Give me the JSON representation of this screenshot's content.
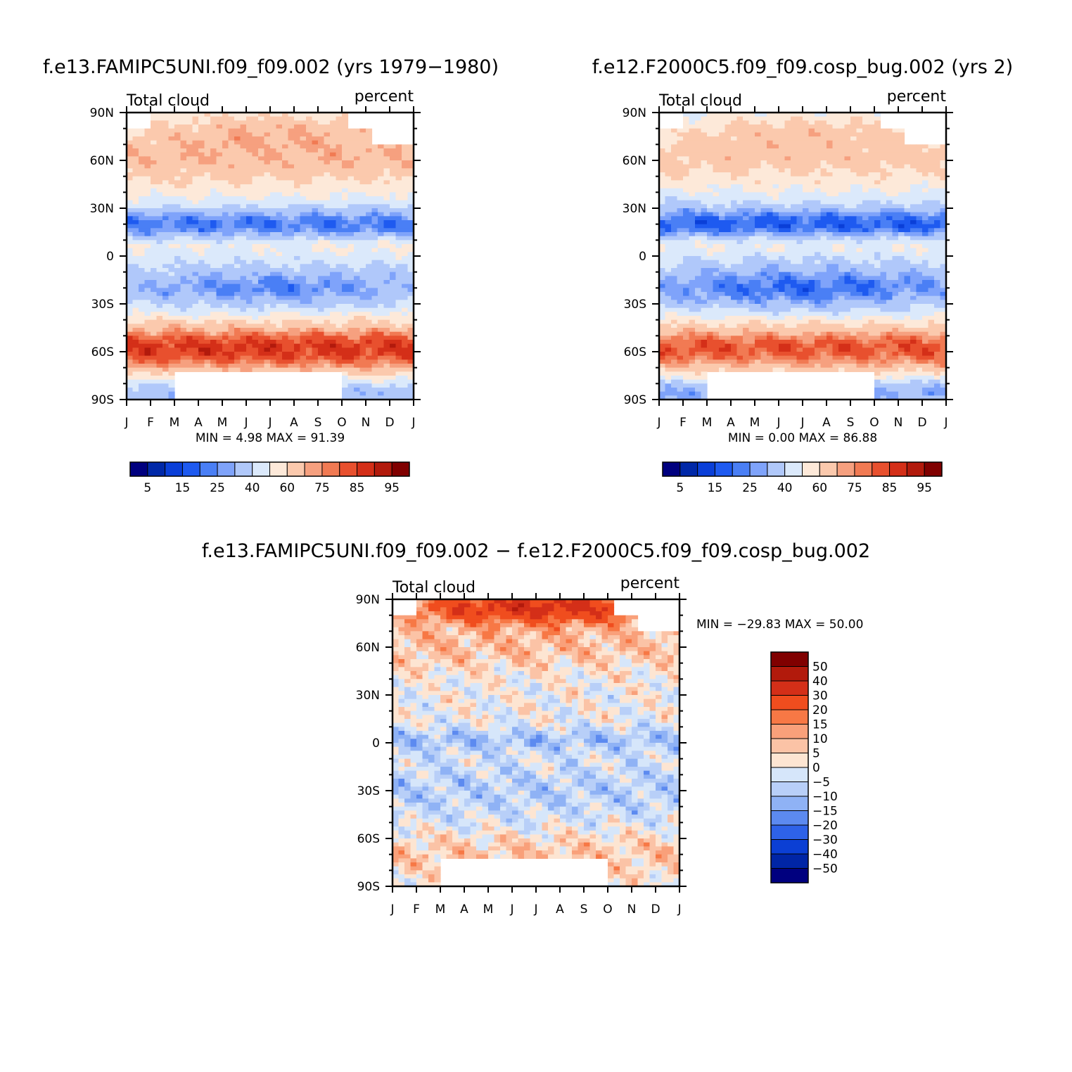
{
  "chart_data": [
    {
      "type": "heatmap",
      "id": "p1",
      "title": "f.e13.FAMIPC5UNI.f09_f09.002 (yrs 1979-1980)",
      "left_label": "Total cloud",
      "right_label": "percent",
      "x_ticks": [
        "J",
        "F",
        "M",
        "A",
        "M",
        "J",
        "J",
        "A",
        "S",
        "O",
        "N",
        "D",
        "J"
      ],
      "y_ticks": [
        "90N",
        "60N",
        "30N",
        "0",
        "30S",
        "60S",
        "90S"
      ],
      "stats_text": "MIN =    4.98  MAX =   91.39",
      "colorbar": {
        "orientation": "horizontal",
        "colors": [
          "#00007f",
          "#0028a8",
          "#0a3fd8",
          "#1e5af0",
          "#4a7ff5",
          "#7fa3fa",
          "#b0c8fa",
          "#dbe9fb",
          "#fde9d9",
          "#fbc9ad",
          "#f6a07f",
          "#f17a53",
          "#e8502e",
          "#d42f18",
          "#b21a0c",
          "#800000"
        ],
        "labels": [
          "5",
          "15",
          "25",
          "40",
          "60",
          "75",
          "85",
          "95"
        ]
      },
      "field": "climatological total cloud fraction by latitude and month"
    },
    {
      "type": "heatmap",
      "id": "p2",
      "title": "f.e12.F2000C5.f09_f09.cosp_bug.002 (yrs 2)",
      "left_label": "Total cloud",
      "right_label": "percent",
      "x_ticks": [
        "J",
        "F",
        "M",
        "A",
        "M",
        "J",
        "J",
        "A",
        "S",
        "O",
        "N",
        "D",
        "J"
      ],
      "y_ticks": [
        "90N",
        "60N",
        "30N",
        "0",
        "30S",
        "60S",
        "90S"
      ],
      "stats_text": "MIN =    0.00  MAX =   86.88",
      "colorbar": {
        "orientation": "horizontal",
        "colors": [
          "#00007f",
          "#0028a8",
          "#0a3fd8",
          "#1e5af0",
          "#4a7ff5",
          "#7fa3fa",
          "#b0c8fa",
          "#dbe9fb",
          "#fde9d9",
          "#fbc9ad",
          "#f6a07f",
          "#f17a53",
          "#e8502e",
          "#d42f18",
          "#b21a0c",
          "#800000"
        ],
        "labels": [
          "5",
          "15",
          "25",
          "40",
          "60",
          "75",
          "85",
          "95"
        ]
      },
      "field": "climatological total cloud fraction by latitude and month"
    },
    {
      "type": "heatmap",
      "id": "p3",
      "title": "f.e13.FAMIPC5UNI.f09_f09.002 - f.e12.F2000C5.f09_f09.cosp_bug.002",
      "left_label": "Total cloud",
      "right_label": "percent",
      "x_ticks": [
        "J",
        "F",
        "M",
        "A",
        "M",
        "J",
        "J",
        "A",
        "S",
        "O",
        "N",
        "D",
        "J"
      ],
      "y_ticks": [
        "90N",
        "60N",
        "30N",
        "0",
        "30S",
        "60S",
        "90S"
      ],
      "stats_text": "MIN = -29.83  MAX =   50.00",
      "colorbar": {
        "orientation": "vertical",
        "colors": [
          "#800000",
          "#b21a0c",
          "#d42f18",
          "#f04d1e",
          "#f77845",
          "#f9a07a",
          "#fbc3a6",
          "#fde5d2",
          "#d6e6fa",
          "#b8cff8",
          "#8fb2f5",
          "#5c8af0",
          "#2e62e8",
          "#0b3fd4",
          "#0025a6",
          "#00007f"
        ],
        "labels": [
          "50",
          "40",
          "30",
          "20",
          "15",
          "10",
          "5",
          "0",
          "-5",
          "-10",
          "-15",
          "-20",
          "-30",
          "-40",
          "-50"
        ]
      },
      "field": "difference in total cloud fraction by latitude and month"
    }
  ]
}
